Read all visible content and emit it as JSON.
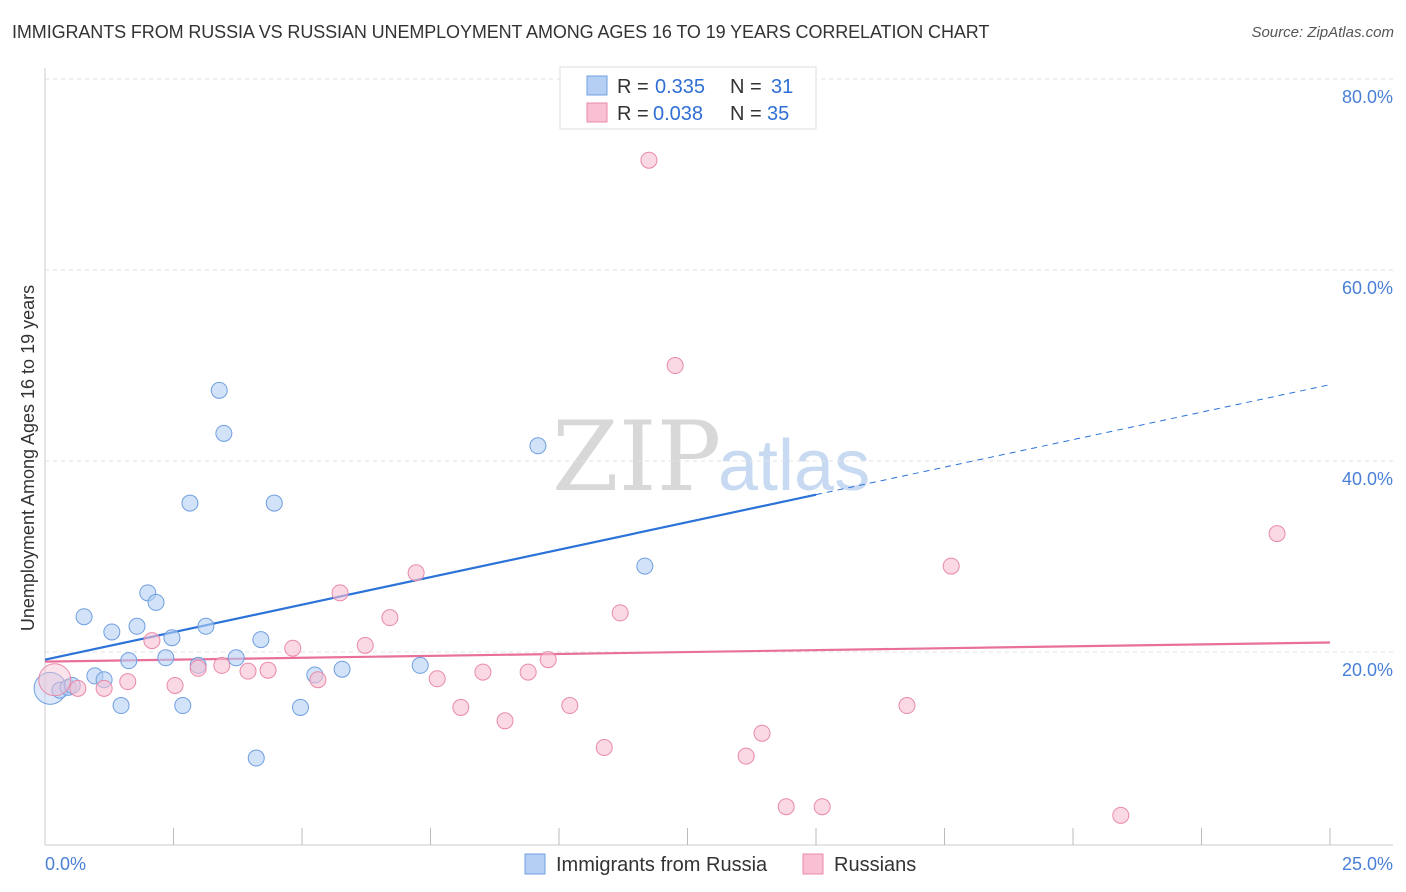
{
  "header": {
    "title": "IMMIGRANTS FROM RUSSIA VS RUSSIAN UNEMPLOYMENT AMONG AGES 16 TO 19 YEARS CORRELATION CHART",
    "source": "Source: ZipAtlas.com"
  },
  "watermark": {
    "zip": "ZIP",
    "atlas": "atlas"
  },
  "colors": {
    "blue_fill": "#b4cff3",
    "blue_stroke": "#6f9fe0",
    "blue_line": "#2b73d8",
    "pink_fill": "#f8c0d2",
    "pink_stroke": "#e88aa8",
    "pink_line": "#e8709a",
    "accent_text": "#4a7fd6"
  },
  "chart_data": {
    "type": "scatter",
    "title": "IMMIGRANTS FROM RUSSIA VS RUSSIAN UNEMPLOYMENT AMONG AGES 16 TO 19 YEARS CORRELATION CHART",
    "xlabel": "",
    "ylabel": "Unemployment Among Ages 16 to 19 years",
    "xlim": [
      0,
      25
    ],
    "ylim": [
      0,
      85
    ],
    "x_tick_labels": [
      "0.0%",
      "25.0%"
    ],
    "y_ticks": [
      20,
      40,
      60,
      80
    ],
    "y_tick_labels": [
      "20.0%",
      "40.0%",
      "60.0%",
      "80.0%"
    ],
    "grid": true,
    "legend_position": "top-center",
    "stats": [
      {
        "r_label": "R =",
        "r": "0.335",
        "n_label": "N =",
        "n": "31"
      },
      {
        "r_label": "R =",
        "r": "0.038",
        "n_label": "N =",
        "n": "35"
      }
    ],
    "series": [
      {
        "name": "Immigrants from Russia",
        "color": "blue",
        "trend": {
          "x0": 0,
          "y0": 19.3,
          "x1": 25,
          "y1": 48.1,
          "solid_until_x": 15
        },
        "points": [
          [
            0.1,
            16.3
          ],
          [
            0.29,
            16.1
          ],
          [
            0.45,
            16.4
          ],
          [
            0.53,
            16.6
          ],
          [
            0.76,
            23.8
          ],
          [
            0.97,
            17.6
          ],
          [
            1.15,
            17.2
          ],
          [
            1.3,
            22.2
          ],
          [
            1.48,
            14.5
          ],
          [
            1.63,
            19.2
          ],
          [
            1.79,
            22.8
          ],
          [
            2.0,
            26.3
          ],
          [
            2.16,
            25.3
          ],
          [
            2.35,
            19.5
          ],
          [
            2.47,
            21.6
          ],
          [
            2.68,
            14.5
          ],
          [
            2.82,
            35.7
          ],
          [
            2.98,
            18.7
          ],
          [
            3.13,
            22.8
          ],
          [
            3.39,
            47.5
          ],
          [
            3.48,
            43.0
          ],
          [
            3.72,
            19.5
          ],
          [
            4.11,
            9.0
          ],
          [
            4.2,
            21.4
          ],
          [
            4.46,
            35.7
          ],
          [
            4.97,
            14.3
          ],
          [
            5.25,
            17.7
          ],
          [
            5.78,
            18.3
          ],
          [
            7.3,
            18.7
          ],
          [
            9.59,
            41.7
          ],
          [
            11.67,
            29.1
          ]
        ]
      },
      {
        "name": "Russians",
        "color": "pink",
        "trend": {
          "x0": 0,
          "y0": 19.1,
          "x1": 25,
          "y1": 21.1,
          "solid_until_x": 25
        },
        "points": [
          [
            0.19,
            17.2
          ],
          [
            0.64,
            16.3
          ],
          [
            1.15,
            16.3
          ],
          [
            1.61,
            17.0
          ],
          [
            2.08,
            21.3
          ],
          [
            2.53,
            16.6
          ],
          [
            2.98,
            18.4
          ],
          [
            3.44,
            18.7
          ],
          [
            3.95,
            18.1
          ],
          [
            4.34,
            18.2
          ],
          [
            4.82,
            20.5
          ],
          [
            5.31,
            17.2
          ],
          [
            5.74,
            26.3
          ],
          [
            6.23,
            20.8
          ],
          [
            6.71,
            23.7
          ],
          [
            7.22,
            28.4
          ],
          [
            7.63,
            17.3
          ],
          [
            8.09,
            14.3
          ],
          [
            8.52,
            18.0
          ],
          [
            8.95,
            12.9
          ],
          [
            9.4,
            18.0
          ],
          [
            9.79,
            19.3
          ],
          [
            10.21,
            14.5
          ],
          [
            10.88,
            10.1
          ],
          [
            11.19,
            24.2
          ],
          [
            11.75,
            71.6
          ],
          [
            12.26,
            50.1
          ],
          [
            13.64,
            9.2
          ],
          [
            13.95,
            11.6
          ],
          [
            14.42,
            3.9
          ],
          [
            15.12,
            3.9
          ],
          [
            16.77,
            14.5
          ],
          [
            17.63,
            29.1
          ],
          [
            20.93,
            3.0
          ],
          [
            23.97,
            32.5
          ]
        ]
      }
    ]
  }
}
